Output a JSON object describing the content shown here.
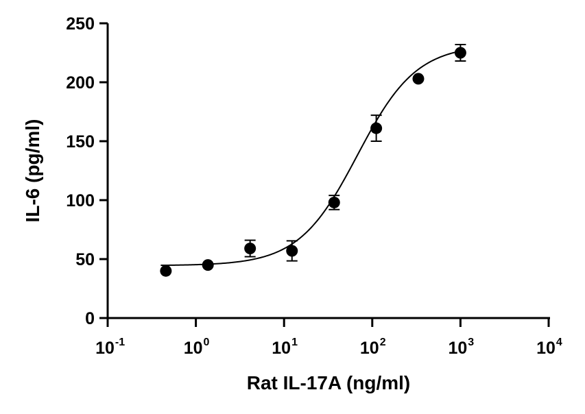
{
  "chart_data": {
    "type": "scatter",
    "xlabel": "Rat IL-17A (ng/ml)",
    "ylabel": "IL-6 (pg/ml)",
    "x_scale": "log",
    "xlim": [
      0.1,
      10000
    ],
    "ylim": [
      0,
      250
    ],
    "x_ticks": [
      {
        "base": "10",
        "exp": "-1",
        "value": 0.1
      },
      {
        "base": "10",
        "exp": "0",
        "value": 1
      },
      {
        "base": "10",
        "exp": "1",
        "value": 10
      },
      {
        "base": "10",
        "exp": "2",
        "value": 100
      },
      {
        "base": "10",
        "exp": "3",
        "value": 1000
      },
      {
        "base": "10",
        "exp": "4",
        "value": 10000
      }
    ],
    "y_ticks": [
      {
        "label": "0",
        "value": 0
      },
      {
        "label": "50",
        "value": 50
      },
      {
        "label": "100",
        "value": 100
      },
      {
        "label": "150",
        "value": 150
      },
      {
        "label": "200",
        "value": 200
      },
      {
        "label": "250",
        "value": 250
      }
    ],
    "grid": false,
    "legend": "none",
    "points": [
      {
        "x": 0.457,
        "y": 40,
        "err": 0
      },
      {
        "x": 1.37,
        "y": 45,
        "err": 0
      },
      {
        "x": 4.12,
        "y": 59,
        "err": 7
      },
      {
        "x": 12.3,
        "y": 57,
        "err": 8.5
      },
      {
        "x": 37.0,
        "y": 98,
        "err": 6
      },
      {
        "x": 111,
        "y": 161,
        "err": 11
      },
      {
        "x": 333,
        "y": 203,
        "err": 0
      },
      {
        "x": 1000,
        "y": 225,
        "err": 7
      }
    ],
    "fit_curve": {
      "model": "4PL",
      "bottom": 44.5,
      "top": 232,
      "ec50": 68,
      "hill": 1.3
    },
    "colors": {
      "marker": "#000000",
      "line": "#000000",
      "axis": "#000000"
    }
  }
}
